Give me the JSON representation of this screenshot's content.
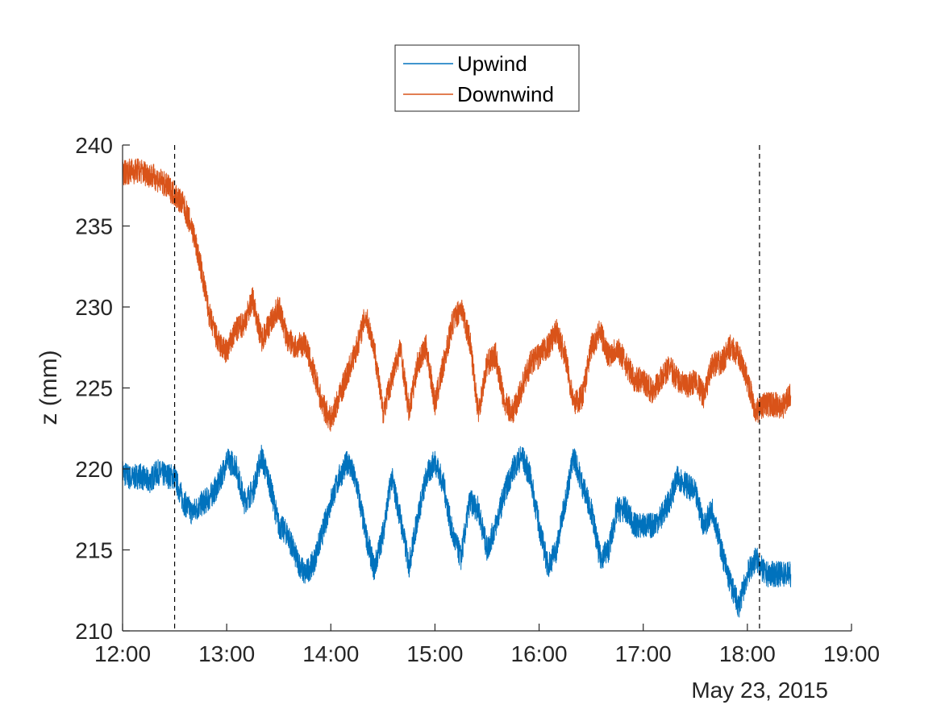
{
  "chart_data": {
    "type": "line",
    "title": "",
    "xlabel": "",
    "ylabel": "z (mm)",
    "date_label": "May 23, 2015",
    "xlim": [
      "12:00",
      "19:00"
    ],
    "xticks": [
      "12:00",
      "13:00",
      "14:00",
      "15:00",
      "16:00",
      "17:00",
      "18:00",
      "19:00"
    ],
    "ylim": [
      210,
      240
    ],
    "yticks": [
      210,
      215,
      220,
      225,
      230,
      235,
      240
    ],
    "grid": false,
    "legend_position": "top-center",
    "vlines": [
      "12:30",
      "18:07"
    ],
    "series": [
      {
        "name": "Upwind",
        "color": "#0072BD",
        "x": [
          "12:00",
          "12:05",
          "12:10",
          "12:15",
          "12:20",
          "12:25",
          "12:30",
          "12:35",
          "12:40",
          "12:45",
          "12:50",
          "12:55",
          "13:00",
          "13:05",
          "13:10",
          "13:15",
          "13:20",
          "13:25",
          "13:30",
          "13:35",
          "13:40",
          "13:45",
          "13:50",
          "13:55",
          "14:00",
          "14:05",
          "14:10",
          "14:15",
          "14:20",
          "14:25",
          "14:30",
          "14:35",
          "14:40",
          "14:45",
          "14:50",
          "14:55",
          "15:00",
          "15:05",
          "15:10",
          "15:15",
          "15:20",
          "15:25",
          "15:30",
          "15:35",
          "15:40",
          "15:45",
          "15:50",
          "15:55",
          "16:00",
          "16:05",
          "16:10",
          "16:15",
          "16:20",
          "16:25",
          "16:30",
          "16:35",
          "16:40",
          "16:45",
          "16:50",
          "16:55",
          "17:00",
          "17:05",
          "17:10",
          "17:15",
          "17:20",
          "17:25",
          "17:30",
          "17:35",
          "17:40",
          "17:45",
          "17:50",
          "17:55",
          "18:00",
          "18:05",
          "18:10",
          "18:15",
          "18:20",
          "18:25"
        ],
        "y": [
          219.8,
          219.4,
          219.6,
          219.2,
          219.8,
          219.6,
          219.5,
          218.0,
          217.3,
          217.8,
          218.2,
          219.0,
          220.5,
          220.3,
          218.0,
          218.6,
          220.8,
          219.0,
          216.5,
          216.0,
          214.5,
          213.5,
          214.2,
          216.0,
          218.0,
          219.5,
          220.5,
          219.0,
          216.0,
          213.8,
          216.0,
          219.5,
          217.0,
          214.0,
          217.0,
          219.5,
          220.5,
          219.0,
          216.0,
          214.5,
          218.0,
          217.5,
          215.0,
          216.5,
          218.5,
          220.0,
          220.8,
          219.5,
          216.5,
          214.0,
          215.0,
          218.0,
          220.8,
          219.0,
          217.5,
          214.5,
          215.0,
          217.5,
          217.5,
          216.5,
          216.5,
          216.5,
          217.0,
          218.0,
          219.5,
          219.0,
          218.5,
          216.5,
          217.5,
          215.0,
          213.0,
          211.5,
          213.5,
          214.5,
          213.5,
          213.5,
          213.5,
          213.5
        ]
      },
      {
        "name": "Downwind",
        "color": "#D95319",
        "x": [
          "12:00",
          "12:05",
          "12:10",
          "12:15",
          "12:20",
          "12:25",
          "12:30",
          "12:35",
          "12:40",
          "12:45",
          "12:50",
          "12:55",
          "13:00",
          "13:05",
          "13:10",
          "13:15",
          "13:20",
          "13:25",
          "13:30",
          "13:35",
          "13:40",
          "13:45",
          "13:50",
          "13:55",
          "14:00",
          "14:05",
          "14:10",
          "14:15",
          "14:20",
          "14:25",
          "14:30",
          "14:35",
          "14:40",
          "14:45",
          "14:50",
          "14:55",
          "15:00",
          "15:05",
          "15:10",
          "15:15",
          "15:20",
          "15:25",
          "15:30",
          "15:35",
          "15:40",
          "15:45",
          "15:50",
          "15:55",
          "16:00",
          "16:05",
          "16:10",
          "16:15",
          "16:20",
          "16:25",
          "16:30",
          "16:35",
          "16:40",
          "16:45",
          "16:50",
          "16:55",
          "17:00",
          "17:05",
          "17:10",
          "17:15",
          "17:20",
          "17:25",
          "17:30",
          "17:35",
          "17:40",
          "17:45",
          "17:50",
          "17:55",
          "18:00",
          "18:05",
          "18:10",
          "18:15",
          "18:20",
          "18:25"
        ],
        "y": [
          238.3,
          238.4,
          238.4,
          238.2,
          237.9,
          237.5,
          237.0,
          236.3,
          234.9,
          232.5,
          229.5,
          227.8,
          227.2,
          228.5,
          229.0,
          230.5,
          228.0,
          229.0,
          230.0,
          228.0,
          227.5,
          227.8,
          226.0,
          224.0,
          223.0,
          224.5,
          226.0,
          227.5,
          229.5,
          227.5,
          223.5,
          225.5,
          227.5,
          223.5,
          226.5,
          227.5,
          224.0,
          226.5,
          229.0,
          230.0,
          228.0,
          223.5,
          226.5,
          227.0,
          224.0,
          223.5,
          225.0,
          226.5,
          227.0,
          227.5,
          228.5,
          227.0,
          224.0,
          224.5,
          227.5,
          228.5,
          227.0,
          227.5,
          226.5,
          225.5,
          225.5,
          224.8,
          225.5,
          226.3,
          225.5,
          225.0,
          225.5,
          224.5,
          226.5,
          226.5,
          227.5,
          227.0,
          225.5,
          223.5,
          224.0,
          224.0,
          223.8,
          224.5
        ]
      }
    ]
  }
}
